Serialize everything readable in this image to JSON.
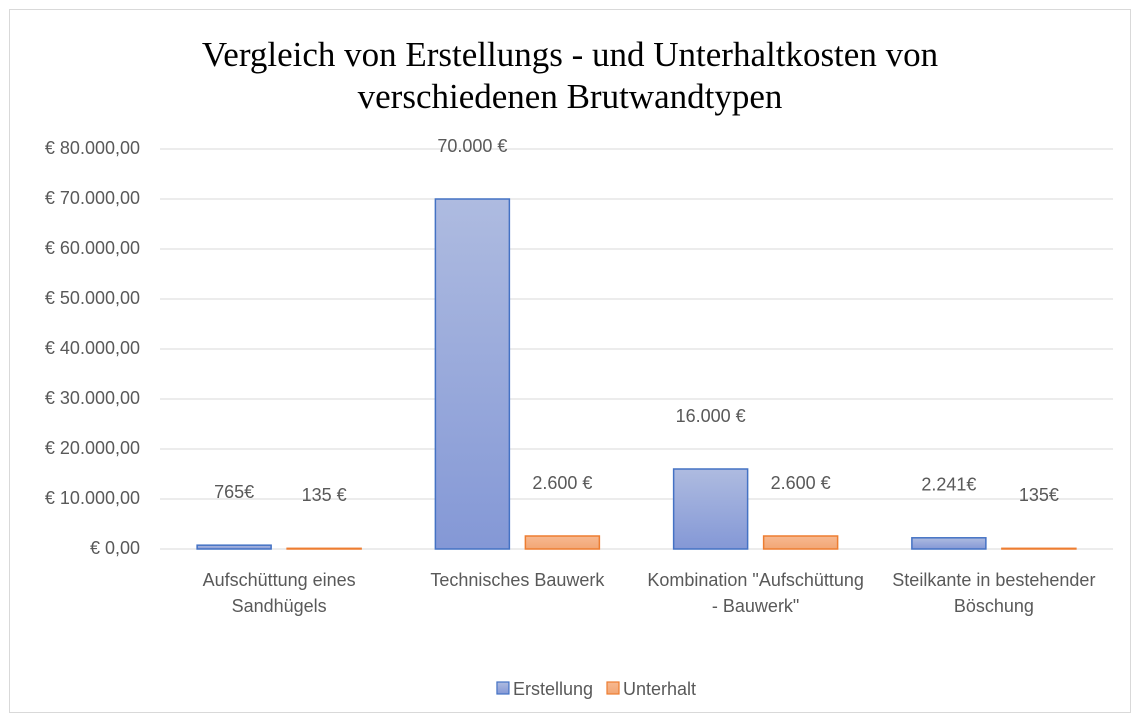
{
  "chart_data": {
    "type": "bar",
    "title": "Vergleich von Erstellungs - und Unterhaltkosten von verschiedenen Brutwandtypen",
    "categories": [
      "Aufschüttung eines Sandhügels",
      "Technisches Bauwerk",
      "Kombination \"Aufschüttung - Bauwerk\"",
      "Steilkante in bestehender Böschung"
    ],
    "series": [
      {
        "name": "Erstellung",
        "color": "#4472c4",
        "values": [
          765,
          70000,
          16000,
          2241
        ],
        "value_labels": [
          "765€",
          "70.000 €",
          "16.000 €",
          "2.241€"
        ]
      },
      {
        "name": "Unterhalt",
        "color": "#ed7d31",
        "values": [
          135,
          2600,
          2600,
          135
        ],
        "value_labels": [
          "135 €",
          "2.600 €",
          "2.600 €",
          "135€"
        ]
      }
    ],
    "ylim": [
      0,
      80000
    ],
    "yticks": [
      {
        "value": 0,
        "label": "€ 0,00"
      },
      {
        "value": 10000,
        "label": "€ 10.000,00"
      },
      {
        "value": 20000,
        "label": "€ 20.000,00"
      },
      {
        "value": 30000,
        "label": "€ 30.000,00"
      },
      {
        "value": 40000,
        "label": "€ 40.000,00"
      },
      {
        "value": 50000,
        "label": "€ 50.000,00"
      },
      {
        "value": 60000,
        "label": "€ 60.000,00"
      },
      {
        "value": 70000,
        "label": "€ 70.000,00"
      },
      {
        "value": 80000,
        "label": "€ 80.000,00"
      }
    ],
    "grid": true,
    "legend": "bottom"
  }
}
